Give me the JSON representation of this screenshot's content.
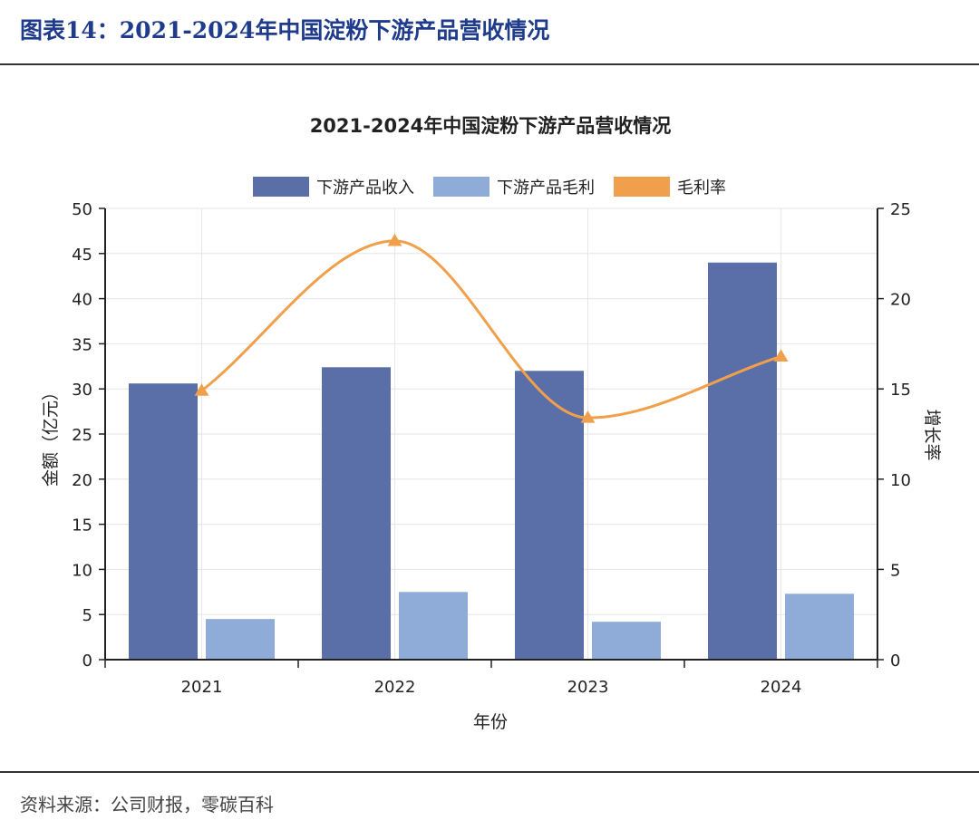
{
  "figure": {
    "caption": "图表14：2021-2024年中国淀粉下游产品营收情况",
    "source": "资料来源：公司财报，零碳百科"
  },
  "chart_data": {
    "type": "bar",
    "title": "2021-2024年中国淀粉下游产品营收情况",
    "categories": [
      "2021",
      "2022",
      "2023",
      "2024"
    ],
    "xlabel": "年份",
    "ylabel": "金额（亿元）",
    "y2label": "增长率",
    "ylim": [
      0,
      50
    ],
    "y2lim": [
      0,
      25
    ],
    "yticks": [
      "0",
      "5",
      "10",
      "15",
      "20",
      "25",
      "30",
      "35",
      "40",
      "45",
      "50"
    ],
    "y2ticks": [
      "0",
      "5",
      "10",
      "15",
      "20",
      "25"
    ],
    "legend_position": "top-center",
    "grid": true,
    "series": [
      {
        "name": "下游产品收入",
        "type": "bar",
        "axis": "left",
        "color": "#5a6ea8",
        "values": [
          30.6,
          32.4,
          32.0,
          44.0
        ]
      },
      {
        "name": "下游产品毛利",
        "type": "bar",
        "axis": "left",
        "color": "#8facd9",
        "values": [
          4.5,
          7.5,
          4.2,
          7.3
        ]
      },
      {
        "name": "毛利率",
        "type": "line",
        "axis": "right",
        "color": "#f0a04b",
        "marker": "triangle",
        "smooth": true,
        "values": [
          14.9,
          23.2,
          13.4,
          16.8
        ]
      }
    ]
  }
}
